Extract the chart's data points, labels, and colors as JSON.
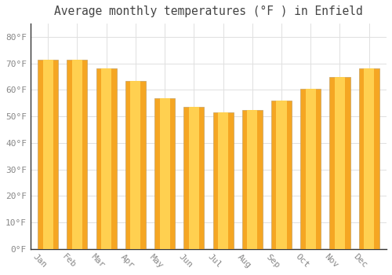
{
  "title": "Average monthly temperatures (°F ) in Enfield",
  "months": [
    "Jan",
    "Feb",
    "Mar",
    "Apr",
    "May",
    "Jun",
    "Jul",
    "Aug",
    "Sep",
    "Oct",
    "Nov",
    "Dec"
  ],
  "values": [
    71.5,
    71.5,
    68.0,
    63.5,
    57.0,
    53.5,
    51.5,
    52.5,
    56.0,
    60.5,
    65.0,
    68.0
  ],
  "bar_color_outer": "#F5A623",
  "bar_color_inner": "#FFD050",
  "bar_border_color": "#C8A060",
  "ylim": [
    0,
    85
  ],
  "yticks": [
    0,
    10,
    20,
    30,
    40,
    50,
    60,
    70,
    80
  ],
  "ytick_labels": [
    "0°F",
    "10°F",
    "20°F",
    "30°F",
    "40°F",
    "50°F",
    "60°F",
    "70°F",
    "80°F"
  ],
  "background_color": "#FFFFFF",
  "grid_color": "#E0E0E0",
  "title_fontsize": 10.5,
  "tick_fontsize": 8,
  "xlabel_rotation": -45
}
